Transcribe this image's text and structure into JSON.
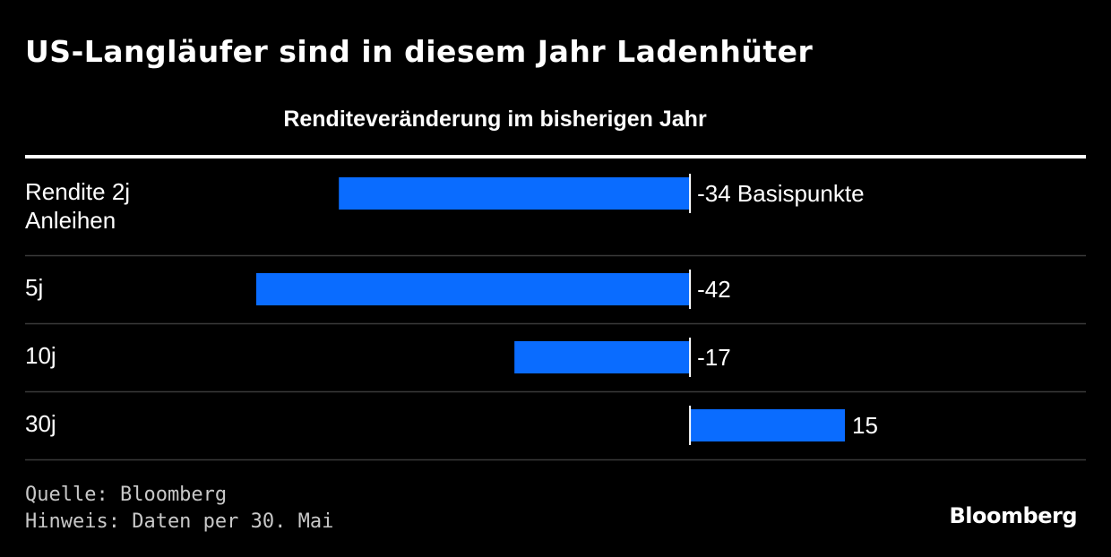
{
  "title": "US-Langläufer sind in diesem Jahr Ladenhüter",
  "colors": {
    "background": "#000000",
    "bar": "#0a6cff",
    "text": "#ffffff",
    "rule": "#3a3a3a"
  },
  "chart_data": {
    "type": "bar",
    "orientation": "horizontal",
    "title": "Renditeveränderung im bisherigen Jahr",
    "categories": [
      [
        "Rendite 2j",
        "Anleihen"
      ],
      [
        "5j"
      ],
      [
        "10j"
      ],
      [
        "30j"
      ]
    ],
    "values": [
      -34,
      -42,
      -17,
      15
    ],
    "value_labels": [
      "-34 Basispunkte",
      "-42",
      "-17",
      "15"
    ],
    "unit": "Basispunkte",
    "xlim": [
      -42,
      15
    ]
  },
  "footer": {
    "source": "Quelle: Bloomberg",
    "note": "Hinweis: Daten per 30. Mai"
  },
  "brand": "Bloomberg"
}
